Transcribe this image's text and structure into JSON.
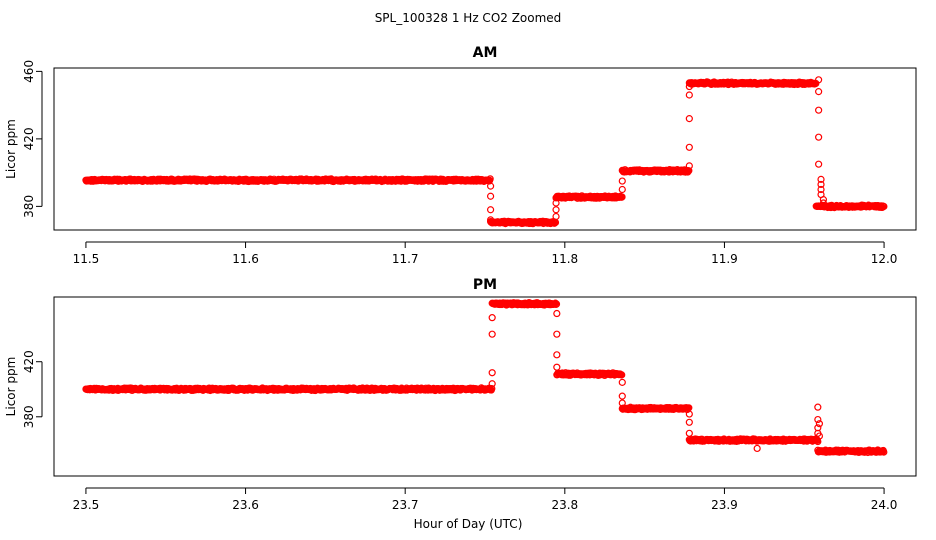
{
  "figure_title": "SPL_100328  1 Hz CO2 Zoomed",
  "xlabel": "Hour of Day (UTC)",
  "series_color": "#ff0000",
  "chart_data": [
    {
      "type": "scatter",
      "title": "AM",
      "ylabel": "Licor ppm",
      "xlim": [
        11.48,
        12.02
      ],
      "ylim": [
        366,
        462
      ],
      "x_ticks": [
        11.5,
        11.6,
        11.7,
        11.8,
        11.9,
        12.0
      ],
      "x_tick_labels": [
        "11.5",
        "11.6",
        "11.7",
        "11.8",
        "11.9",
        "12.0"
      ],
      "y_ticks": [
        380,
        420,
        460
      ],
      "y_tick_labels": [
        "380",
        "420",
        "460"
      ],
      "levels": [
        {
          "x_start": 11.5,
          "x_end": 11.7535,
          "y": 395.5
        },
        {
          "x_start": 11.7535,
          "x_end": 11.7945,
          "y": 370.5
        },
        {
          "x_start": 11.7945,
          "x_end": 11.836,
          "y": 385.5
        },
        {
          "x_start": 11.836,
          "x_end": 11.878,
          "y": 401
        },
        {
          "x_start": 11.878,
          "x_end": 11.9575,
          "y": 453
        },
        {
          "x_start": 11.9575,
          "x_end": 12.0,
          "y": 380
        }
      ],
      "transition_points": [
        {
          "x": 11.7535,
          "y": [
            392,
            386,
            378,
            372
          ]
        },
        {
          "x": 11.7945,
          "y": [
            374,
            378,
            382
          ]
        },
        {
          "x": 11.836,
          "y": [
            390,
            395
          ]
        },
        {
          "x": 11.878,
          "y": [
            404,
            415,
            432,
            446,
            451
          ]
        },
        {
          "x": 11.959,
          "y": [
            455,
            448,
            437,
            421,
            405
          ]
        },
        {
          "x": 11.9605,
          "y": [
            396,
            393,
            390,
            387
          ]
        },
        {
          "x": 11.962,
          "y": [
            384,
            382
          ]
        }
      ]
    },
    {
      "type": "scatter",
      "title": "PM",
      "ylabel": "Licor ppm",
      "xlim": [
        23.48,
        24.02
      ],
      "ylim": [
        337,
        467
      ],
      "x_ticks": [
        23.5,
        23.6,
        23.7,
        23.8,
        23.9,
        24.0
      ],
      "x_tick_labels": [
        "23.5",
        "23.6",
        "23.7",
        "23.8",
        "23.9",
        "24.0"
      ],
      "y_ticks": [
        380,
        420
      ],
      "y_tick_labels": [
        "380",
        "420"
      ],
      "levels": [
        {
          "x_start": 23.5,
          "x_end": 23.7545,
          "y": 400
        },
        {
          "x_start": 23.7545,
          "x_end": 23.795,
          "y": 462
        },
        {
          "x_start": 23.795,
          "x_end": 23.836,
          "y": 411
        },
        {
          "x_start": 23.836,
          "x_end": 23.878,
          "y": 386
        },
        {
          "x_start": 23.878,
          "x_end": 23.9585,
          "y": 363
        },
        {
          "x_start": 23.9585,
          "x_end": 24.0,
          "y": 355
        }
      ],
      "transition_points": [
        {
          "x": 23.7545,
          "y": [
            404,
            412,
            440,
            452
          ]
        },
        {
          "x": 23.795,
          "y": [
            455,
            440,
            425,
            416
          ]
        },
        {
          "x": 23.836,
          "y": [
            405,
            395,
            390
          ]
        },
        {
          "x": 23.878,
          "y": [
            382,
            376,
            368
          ]
        },
        {
          "x": 23.9205,
          "y": [
            357
          ]
        },
        {
          "x": 23.9585,
          "y": [
            387,
            378,
            372,
            368,
            362
          ]
        },
        {
          "x": 23.9595,
          "y": [
            375,
            366
          ]
        }
      ]
    }
  ]
}
